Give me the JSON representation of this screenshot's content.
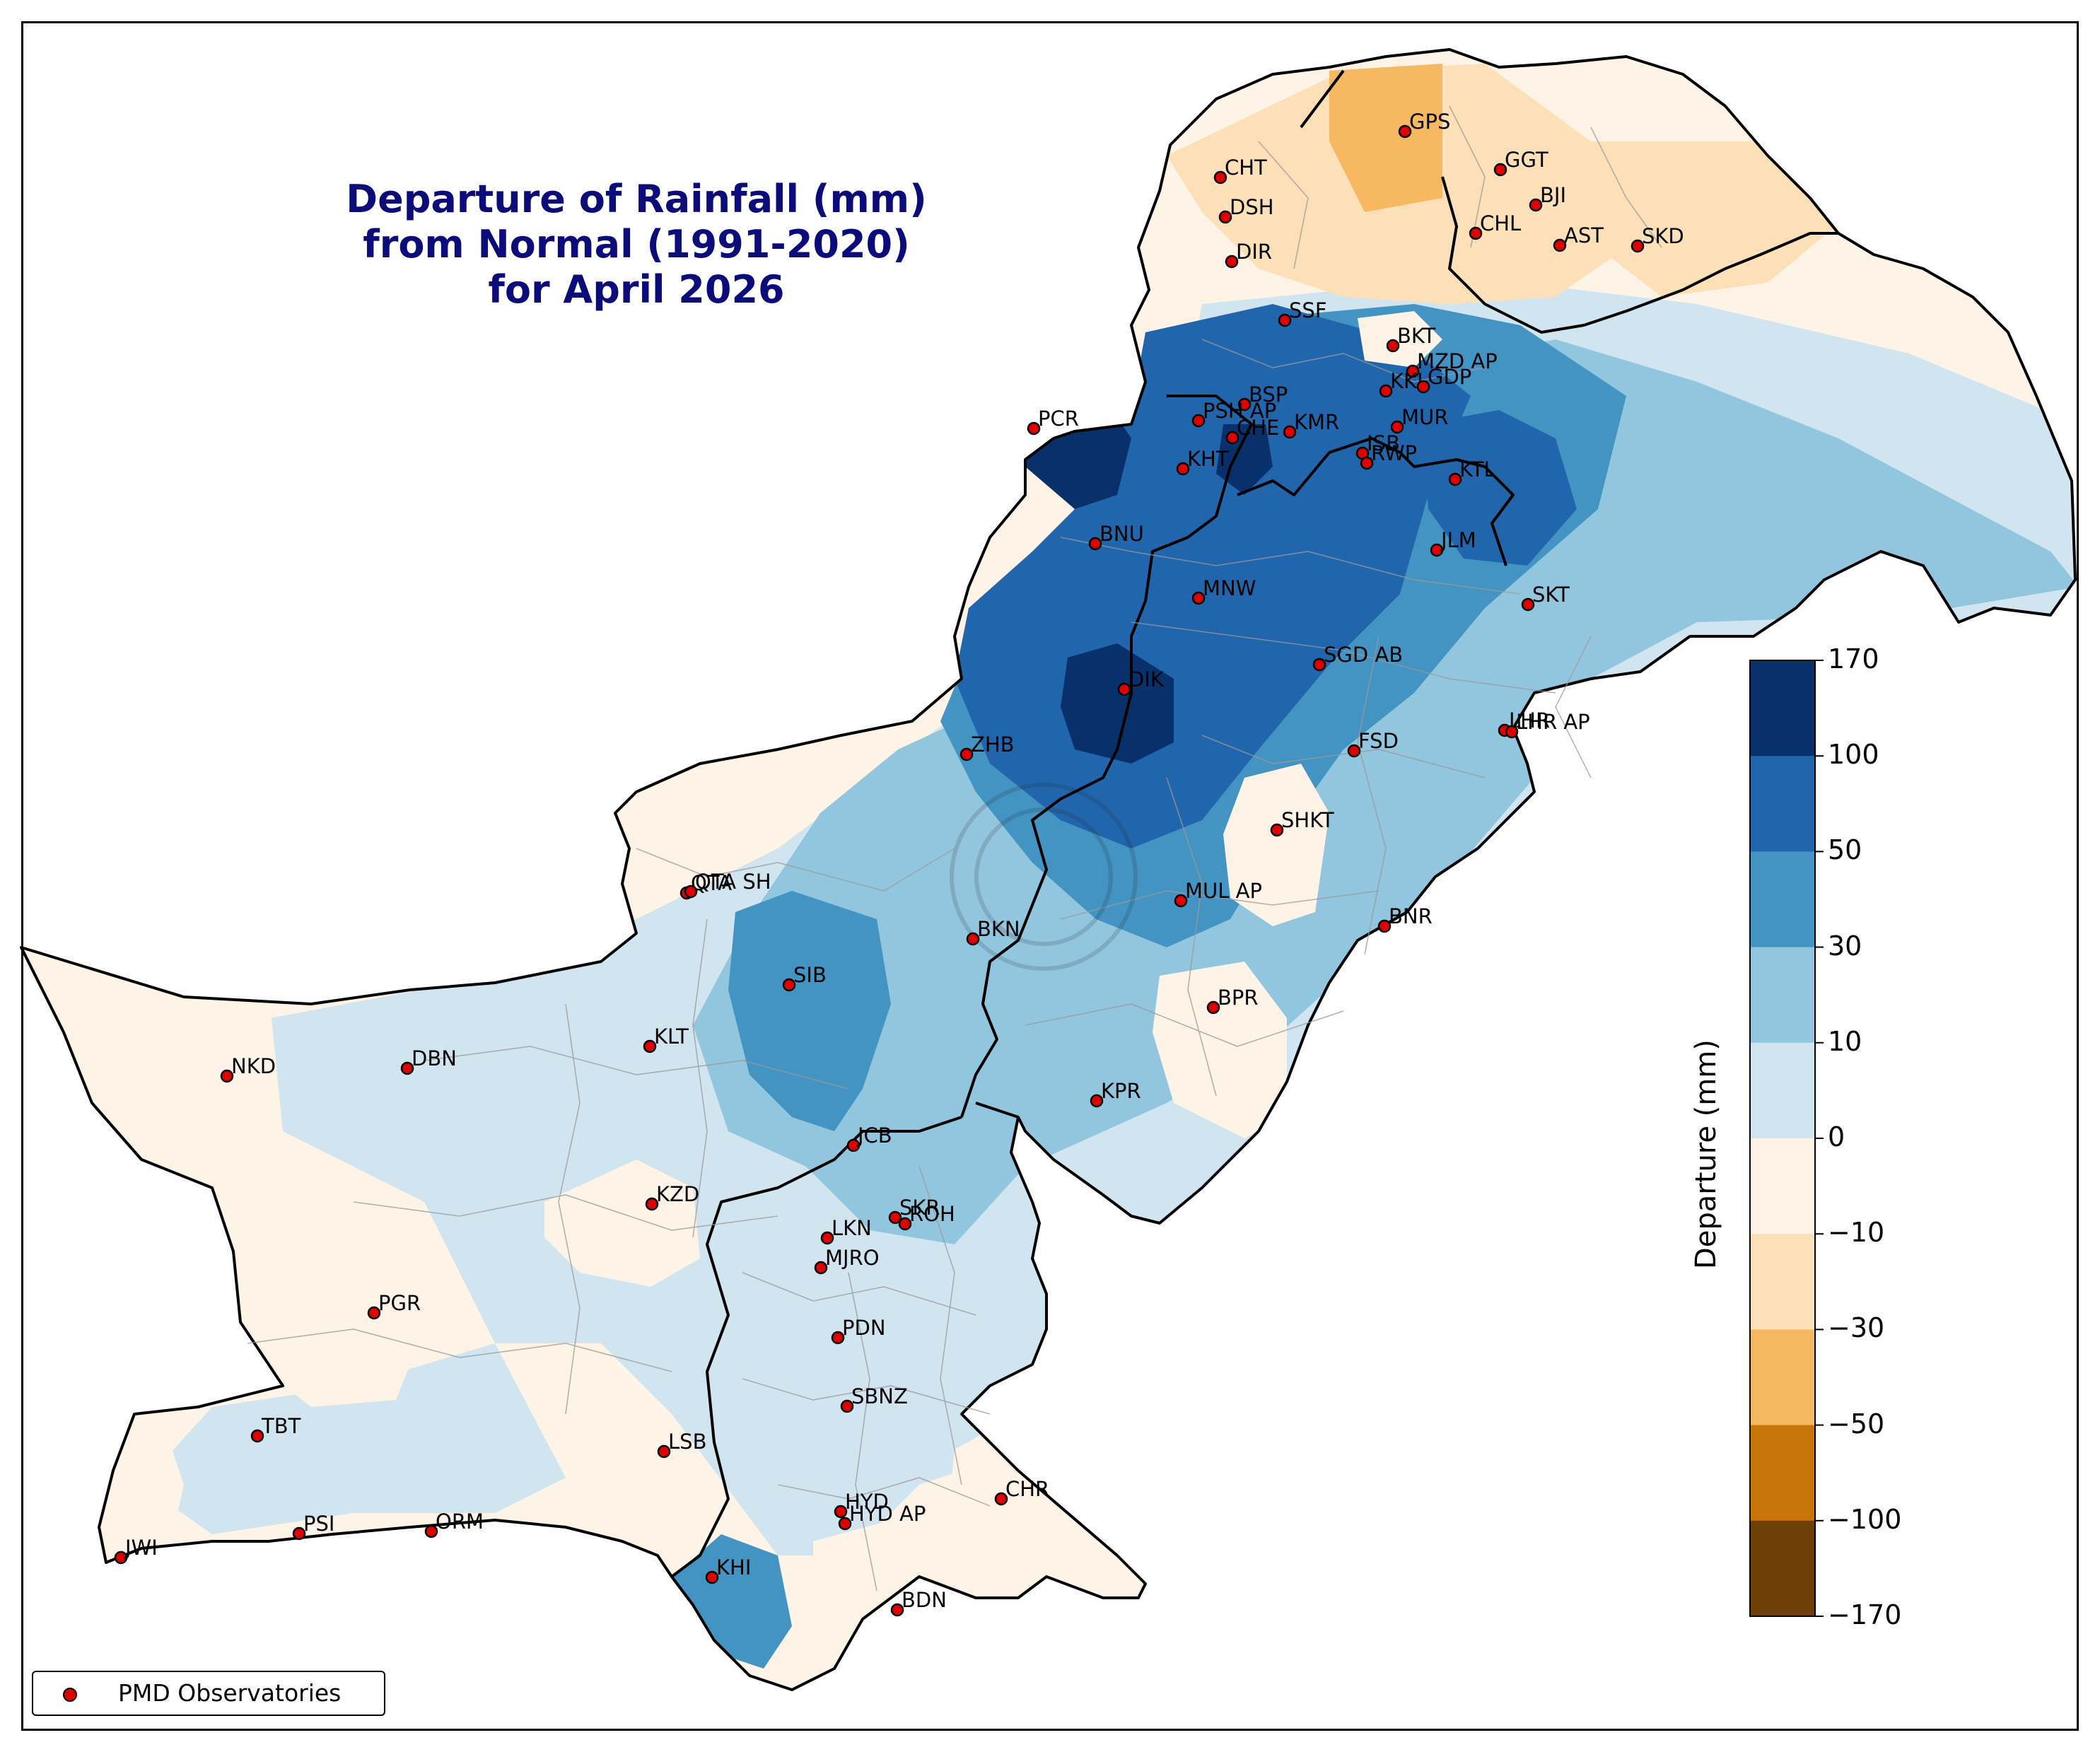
{
  "title": {
    "line1": "Departure of Rainfall (mm)",
    "line2": "from Normal (1991-2020)",
    "line3": "for April 2026"
  },
  "colorbar": {
    "title": "Departure (mm)",
    "ticks": [
      "170",
      "100",
      "50",
      "30",
      "10",
      "0",
      "−10",
      "−30",
      "−50",
      "−100",
      "−170"
    ],
    "colors": [
      "#08306b",
      "#2166ac",
      "#4393c3",
      "#92c5de",
      "#d1e5f0",
      "#fdf4e7",
      "#fde0b8",
      "#f6b860",
      "#c87508",
      "#6e4008"
    ]
  },
  "legend": {
    "label": "PMD Observatories"
  },
  "colors": {
    "station_marker": "#e00000",
    "title_color": "#0b0b7a"
  },
  "stations": [
    {
      "code": "GPS"
    },
    {
      "code": "GGT"
    },
    {
      "code": "BJI"
    },
    {
      "code": "CHT"
    },
    {
      "code": "DSH"
    },
    {
      "code": "CHL"
    },
    {
      "code": "AST"
    },
    {
      "code": "SKD"
    },
    {
      "code": "DIR"
    },
    {
      "code": "SSF"
    },
    {
      "code": "BKT"
    },
    {
      "code": "MZD AP"
    },
    {
      "code": "KKI"
    },
    {
      "code": "GDP"
    },
    {
      "code": "BSP"
    },
    {
      "code": "PSH AP"
    },
    {
      "code": "CHE"
    },
    {
      "code": "KMR"
    },
    {
      "code": "MUR"
    },
    {
      "code": "PCR"
    },
    {
      "code": "KHT"
    },
    {
      "code": "ISB"
    },
    {
      "code": "RWP"
    },
    {
      "code": "KTL"
    },
    {
      "code": "BNU"
    },
    {
      "code": "JLM"
    },
    {
      "code": "MNW"
    },
    {
      "code": "SKT"
    },
    {
      "code": "SGD AB"
    },
    {
      "code": "DIK"
    },
    {
      "code": "LHR"
    },
    {
      "code": "LHR AP"
    },
    {
      "code": "ZHB"
    },
    {
      "code": "FSD"
    },
    {
      "code": "SHKT"
    },
    {
      "code": "QTA"
    },
    {
      "code": "QTA SH"
    },
    {
      "code": "MUL AP"
    },
    {
      "code": "BKN"
    },
    {
      "code": "BNR"
    },
    {
      "code": "SIB"
    },
    {
      "code": "BPR"
    },
    {
      "code": "KLT"
    },
    {
      "code": "NKD"
    },
    {
      "code": "DBN"
    },
    {
      "code": "KPR"
    },
    {
      "code": "JCB"
    },
    {
      "code": "KZD"
    },
    {
      "code": "SKR"
    },
    {
      "code": "ROH"
    },
    {
      "code": "LKN"
    },
    {
      "code": "MJRO"
    },
    {
      "code": "PGR"
    },
    {
      "code": "PDN"
    },
    {
      "code": "SBNZ"
    },
    {
      "code": "TBT"
    },
    {
      "code": "LSB"
    },
    {
      "code": "HYD"
    },
    {
      "code": "HYD AP"
    },
    {
      "code": "CHR"
    },
    {
      "code": "PSI"
    },
    {
      "code": "ORM"
    },
    {
      "code": "JWI"
    },
    {
      "code": "KHI"
    },
    {
      "code": "BDN"
    }
  ]
}
